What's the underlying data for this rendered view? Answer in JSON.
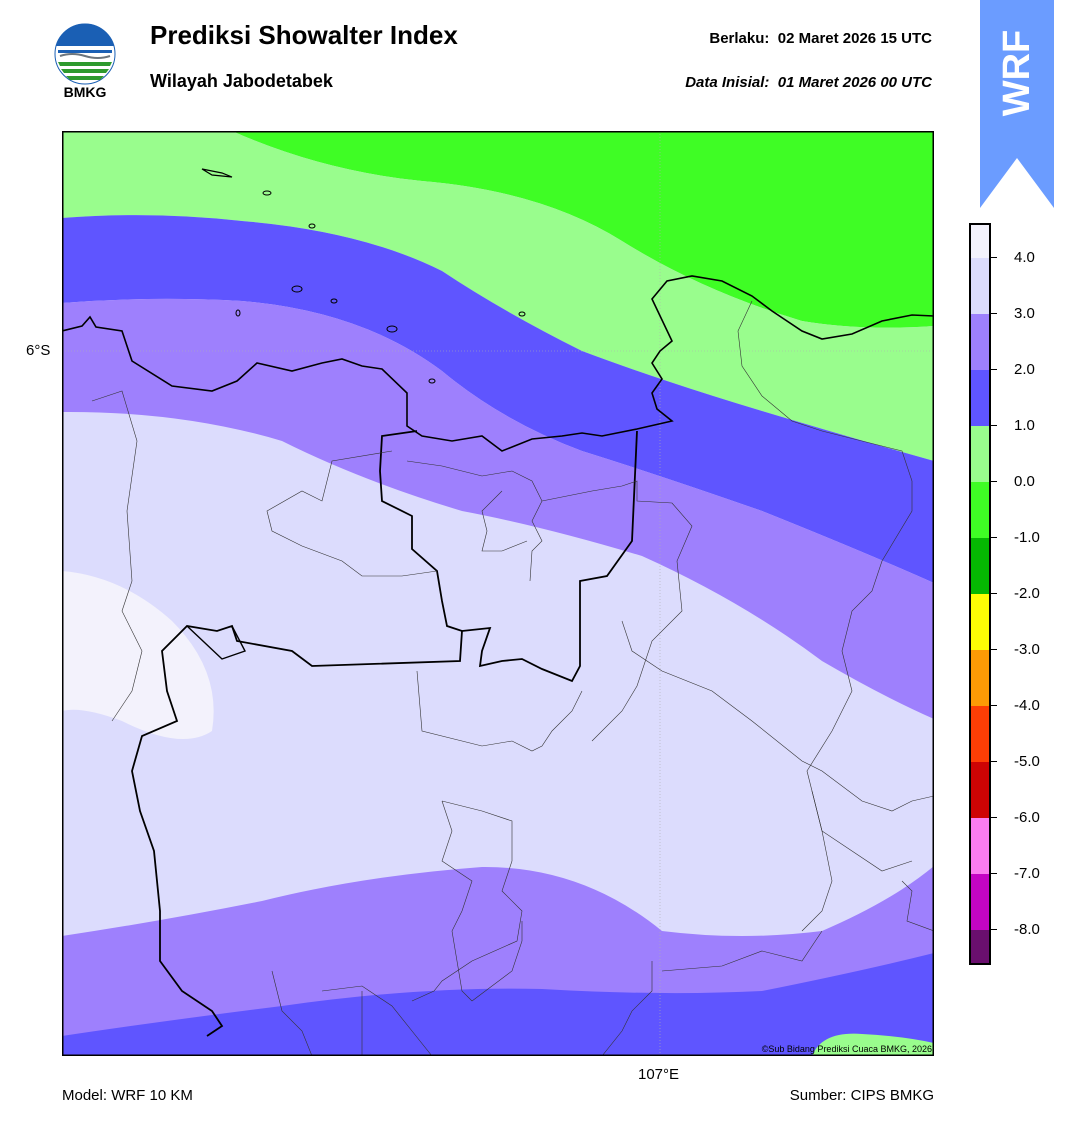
{
  "header": {
    "logo_text": "BMKG",
    "title": "Prediksi Showalter Index",
    "subtitle": "Wilayah Jabodetabek",
    "valid_label": "Berlaku:",
    "valid_value": "02 Maret 2026 15 UTC",
    "init_label": "Data Inisial:",
    "init_value": "01 Maret 2026 00 UTC"
  },
  "banner": {
    "text": "WRF",
    "color": "#6b9cff"
  },
  "map": {
    "lat_tick": "6°S",
    "lon_tick": "107°E",
    "copyright": "©Sub Bidang Prediksi Cuaca BMKG, 2026"
  },
  "colorbar": {
    "levels": [
      {
        "label": "4.0",
        "color": "#f3f2fc"
      },
      {
        "label": "3.0",
        "color": "#dcdcfd"
      },
      {
        "label": "2.0",
        "color": "#9e80fd"
      },
      {
        "label": "1.0",
        "color": "#5f55ff"
      },
      {
        "label": "0.0",
        "color": "#99fd8d"
      },
      {
        "label": "-1.0",
        "color": "#3ffd25"
      },
      {
        "label": "-2.0",
        "color": "#05b802"
      },
      {
        "label": "-3.0",
        "color": "#fdfd05"
      },
      {
        "label": "-4.0",
        "color": "#fd9a05"
      },
      {
        "label": "-5.0",
        "color": "#fd3e05"
      },
      {
        "label": "-6.0",
        "color": "#cd0404"
      },
      {
        "label": "-7.0",
        "color": "#fb7cf0"
      },
      {
        "label": "-8.0",
        "color": "#c405c4"
      }
    ],
    "bottom_color": "#6a0f6e"
  },
  "footer": {
    "model": "Model: WRF 10 KM",
    "source": "Sumber: CIPS BMKG"
  }
}
